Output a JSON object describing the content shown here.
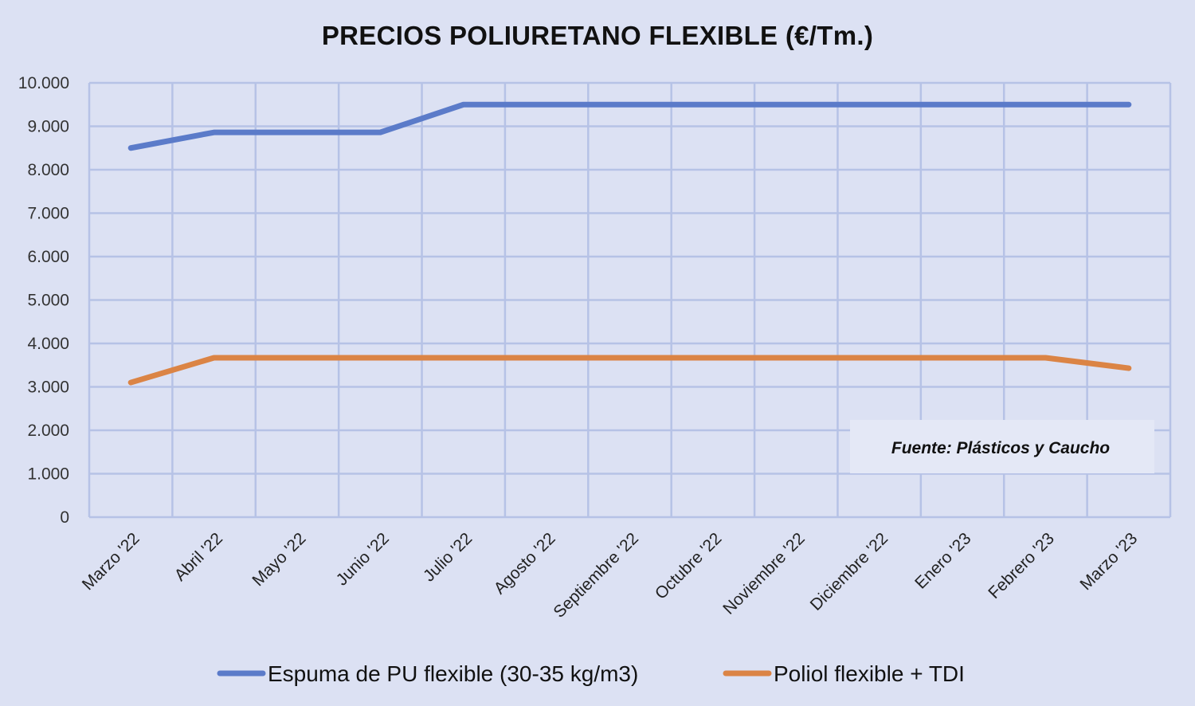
{
  "chart_data": {
    "type": "line",
    "title": "PRECIOS POLIURETANO FLEXIBLE (€/Tm.)",
    "categories": [
      "Marzo '22",
      "Abril '22",
      "Mayo '22",
      "Junio '22",
      "Julio '22",
      "Agosto '22",
      "Septiembre '22",
      "Octubre '22",
      "Noviembre '22",
      "Diciembre '22",
      "Enero '23",
      "Febrero '23",
      "Marzo '23"
    ],
    "y_ticks": [
      "0",
      "1.000",
      "2.000",
      "3.000",
      "4.000",
      "5.000",
      "6.000",
      "7.000",
      "8.000",
      "9.000",
      "10.000"
    ],
    "ylim": [
      0,
      10000
    ],
    "grid": true,
    "legend_position": "bottom",
    "series": [
      {
        "name": "Espuma de PU flexible (30-35 kg/m3)",
        "color": "#5b7bc9",
        "values": [
          8500,
          8860,
          8860,
          8860,
          9500,
          9500,
          9500,
          9500,
          9500,
          9500,
          9500,
          9500,
          9500
        ]
      },
      {
        "name": "Poliol flexible + TDI",
        "color": "#db8445",
        "values": [
          3100,
          3670,
          3670,
          3670,
          3670,
          3670,
          3670,
          3670,
          3670,
          3670,
          3670,
          3670,
          3430
        ]
      }
    ],
    "annotation": "Fuente: Plásticos y Caucho"
  }
}
